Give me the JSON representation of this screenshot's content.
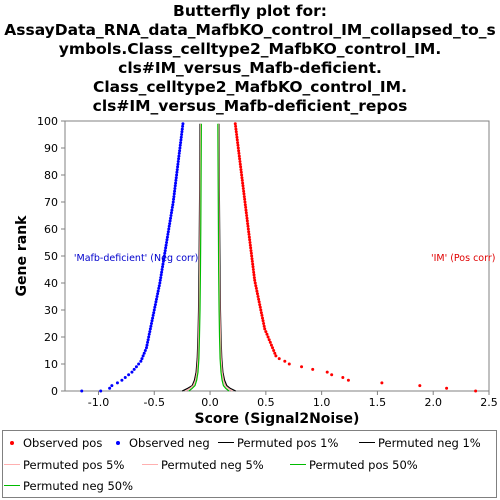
{
  "chart_data": {
    "type": "scatter",
    "title_lines": [
      "Butterfly plot for:",
      "AssayData_RNA_data_MafbKO_control_IM_collapsed_to_s",
      "ymbols.Class_celltype2_MafbKO_control_IM.",
      "cls#IM_versus_Mafb-deficient.",
      "Class_celltype2_MafbKO_control_IM.",
      "cls#IM_versus_Mafb-deficient_repos"
    ],
    "xlabel": "Score (Signal2Noise)",
    "ylabel": "Gene rank",
    "xlim": [
      -1.3,
      2.5
    ],
    "ylim": [
      0,
      100
    ],
    "x_ticks": [
      -1.0,
      -0.5,
      0.0,
      0.5,
      1.0,
      1.5,
      2.0,
      2.5
    ],
    "x_tick_labels": [
      "-1.0",
      "-0.5",
      "0.0",
      "0.5",
      "1.0",
      "1.5",
      "2.0",
      "2.5"
    ],
    "y_ticks": [
      0,
      10,
      20,
      30,
      40,
      50,
      60,
      70,
      80,
      90,
      100
    ],
    "y_tick_labels": [
      "0",
      "10",
      "20",
      "30",
      "40",
      "50",
      "60",
      "70",
      "80",
      "90",
      "100"
    ],
    "annotations": [
      {
        "text": "'Mafb-deficient' (Neg corr)",
        "x": -1.22,
        "y": 49.6,
        "color": "#0000cc"
      },
      {
        "text": "'IM' (Pos corr)",
        "x": 1.98,
        "y": 49.6,
        "color": "#e00000"
      }
    ],
    "series": [
      {
        "name": "Observed pos",
        "kind": "points",
        "color": "#ff0000",
        "points": [
          [
            2.38,
            0
          ],
          [
            2.12,
            1
          ],
          [
            1.88,
            2
          ],
          [
            1.54,
            3
          ],
          [
            1.24,
            4
          ],
          [
            1.19,
            5
          ],
          [
            1.09,
            6
          ],
          [
            1.05,
            7
          ],
          [
            0.92,
            8
          ],
          [
            0.82,
            9
          ],
          [
            0.71,
            10
          ],
          [
            0.67,
            11
          ],
          [
            0.62,
            12
          ],
          [
            0.59,
            13
          ],
          [
            0.58,
            14
          ],
          [
            0.57,
            15
          ],
          [
            0.56,
            16
          ],
          [
            0.55,
            17
          ],
          [
            0.54,
            18
          ],
          [
            0.53,
            19
          ],
          [
            0.52,
            20
          ],
          [
            0.51,
            21
          ],
          [
            0.5,
            22
          ],
          [
            0.49,
            23
          ],
          [
            0.485,
            24
          ],
          [
            0.48,
            25
          ],
          [
            0.475,
            26
          ],
          [
            0.47,
            27
          ],
          [
            0.465,
            28
          ],
          [
            0.46,
            29
          ],
          [
            0.455,
            30
          ],
          [
            0.45,
            31
          ],
          [
            0.445,
            32
          ],
          [
            0.44,
            33
          ],
          [
            0.435,
            34
          ],
          [
            0.43,
            35
          ],
          [
            0.425,
            36
          ],
          [
            0.42,
            37
          ],
          [
            0.415,
            38
          ],
          [
            0.41,
            39
          ],
          [
            0.405,
            40
          ],
          [
            0.4,
            41
          ],
          [
            0.397,
            42
          ],
          [
            0.394,
            43
          ],
          [
            0.391,
            44
          ],
          [
            0.388,
            45
          ],
          [
            0.385,
            46
          ],
          [
            0.382,
            47
          ],
          [
            0.379,
            48
          ],
          [
            0.376,
            49
          ],
          [
            0.373,
            50
          ],
          [
            0.37,
            51
          ],
          [
            0.367,
            52
          ],
          [
            0.364,
            53
          ],
          [
            0.361,
            54
          ],
          [
            0.358,
            55
          ],
          [
            0.355,
            56
          ],
          [
            0.352,
            57
          ],
          [
            0.349,
            58
          ],
          [
            0.346,
            59
          ],
          [
            0.343,
            60
          ],
          [
            0.34,
            61
          ],
          [
            0.337,
            62
          ],
          [
            0.334,
            63
          ],
          [
            0.331,
            64
          ],
          [
            0.328,
            65
          ],
          [
            0.325,
            66
          ],
          [
            0.322,
            67
          ],
          [
            0.319,
            68
          ],
          [
            0.316,
            69
          ],
          [
            0.313,
            70
          ],
          [
            0.31,
            71
          ],
          [
            0.307,
            72
          ],
          [
            0.304,
            73
          ],
          [
            0.301,
            74
          ],
          [
            0.298,
            75
          ],
          [
            0.295,
            76
          ],
          [
            0.292,
            77
          ],
          [
            0.289,
            78
          ],
          [
            0.286,
            79
          ],
          [
            0.283,
            80
          ],
          [
            0.28,
            81
          ],
          [
            0.277,
            82
          ],
          [
            0.274,
            83
          ],
          [
            0.271,
            84
          ],
          [
            0.268,
            85
          ],
          [
            0.265,
            86
          ],
          [
            0.262,
            87
          ],
          [
            0.259,
            88
          ],
          [
            0.256,
            89
          ],
          [
            0.253,
            90
          ],
          [
            0.25,
            91
          ],
          [
            0.247,
            92
          ],
          [
            0.244,
            93
          ],
          [
            0.241,
            94
          ],
          [
            0.238,
            95
          ],
          [
            0.235,
            96
          ],
          [
            0.232,
            97
          ],
          [
            0.229,
            98
          ],
          [
            0.226,
            99
          ]
        ]
      },
      {
        "name": "Observed neg",
        "kind": "points",
        "color": "#0000ff",
        "points": [
          [
            -1.15,
            0
          ],
          [
            -0.98,
            0
          ],
          [
            -0.9,
            1
          ],
          [
            -0.88,
            2
          ],
          [
            -0.83,
            3
          ],
          [
            -0.79,
            4
          ],
          [
            -0.76,
            5
          ],
          [
            -0.73,
            6
          ],
          [
            -0.7,
            7
          ],
          [
            -0.68,
            8
          ],
          [
            -0.66,
            9
          ],
          [
            -0.64,
            10
          ],
          [
            -0.62,
            11
          ],
          [
            -0.61,
            12
          ],
          [
            -0.6,
            13
          ],
          [
            -0.59,
            14
          ],
          [
            -0.58,
            15
          ],
          [
            -0.57,
            16
          ],
          [
            -0.565,
            17
          ],
          [
            -0.56,
            18
          ],
          [
            -0.555,
            19
          ],
          [
            -0.55,
            20
          ],
          [
            -0.545,
            21
          ],
          [
            -0.54,
            22
          ],
          [
            -0.535,
            23
          ],
          [
            -0.53,
            24
          ],
          [
            -0.525,
            25
          ],
          [
            -0.52,
            26
          ],
          [
            -0.515,
            27
          ],
          [
            -0.51,
            28
          ],
          [
            -0.505,
            29
          ],
          [
            -0.5,
            30
          ],
          [
            -0.495,
            31
          ],
          [
            -0.49,
            32
          ],
          [
            -0.485,
            33
          ],
          [
            -0.48,
            34
          ],
          [
            -0.475,
            35
          ],
          [
            -0.47,
            36
          ],
          [
            -0.465,
            37
          ],
          [
            -0.46,
            38
          ],
          [
            -0.455,
            39
          ],
          [
            -0.45,
            40
          ],
          [
            -0.446,
            41
          ],
          [
            -0.442,
            42
          ],
          [
            -0.438,
            43
          ],
          [
            -0.434,
            44
          ],
          [
            -0.43,
            45
          ],
          [
            -0.426,
            46
          ],
          [
            -0.422,
            47
          ],
          [
            -0.418,
            48
          ],
          [
            -0.414,
            49
          ],
          [
            -0.41,
            50
          ],
          [
            -0.406,
            51
          ],
          [
            -0.402,
            52
          ],
          [
            -0.398,
            53
          ],
          [
            -0.394,
            54
          ],
          [
            -0.39,
            55
          ],
          [
            -0.386,
            56
          ],
          [
            -0.382,
            57
          ],
          [
            -0.378,
            58
          ],
          [
            -0.374,
            59
          ],
          [
            -0.37,
            60
          ],
          [
            -0.366,
            61
          ],
          [
            -0.362,
            62
          ],
          [
            -0.358,
            63
          ],
          [
            -0.354,
            64
          ],
          [
            -0.35,
            65
          ],
          [
            -0.346,
            66
          ],
          [
            -0.342,
            67
          ],
          [
            -0.338,
            68
          ],
          [
            -0.334,
            69
          ],
          [
            -0.33,
            70
          ],
          [
            -0.327,
            71
          ],
          [
            -0.324,
            72
          ],
          [
            -0.321,
            73
          ],
          [
            -0.318,
            74
          ],
          [
            -0.315,
            75
          ],
          [
            -0.312,
            76
          ],
          [
            -0.309,
            77
          ],
          [
            -0.306,
            78
          ],
          [
            -0.303,
            79
          ],
          [
            -0.3,
            80
          ],
          [
            -0.297,
            81
          ],
          [
            -0.294,
            82
          ],
          [
            -0.291,
            83
          ],
          [
            -0.288,
            84
          ],
          [
            -0.285,
            85
          ],
          [
            -0.282,
            86
          ],
          [
            -0.279,
            87
          ],
          [
            -0.276,
            88
          ],
          [
            -0.273,
            89
          ],
          [
            -0.27,
            90
          ],
          [
            -0.267,
            91
          ],
          [
            -0.264,
            92
          ],
          [
            -0.261,
            93
          ],
          [
            -0.258,
            94
          ],
          [
            -0.255,
            95
          ],
          [
            -0.252,
            96
          ],
          [
            -0.249,
            97
          ],
          [
            -0.246,
            98
          ],
          [
            -0.243,
            99
          ]
        ]
      },
      {
        "name": "Permuted pos 1%",
        "kind": "line",
        "color": "#000000",
        "points": [
          [
            0.23,
            0
          ],
          [
            0.18,
            1
          ],
          [
            0.15,
            2
          ],
          [
            0.13,
            4
          ],
          [
            0.115,
            7
          ],
          [
            0.105,
            12
          ],
          [
            0.098,
            20
          ],
          [
            0.093,
            30
          ],
          [
            0.089,
            45
          ],
          [
            0.086,
            60
          ],
          [
            0.083,
            75
          ],
          [
            0.081,
            90
          ],
          [
            0.08,
            99
          ]
        ]
      },
      {
        "name": "Permuted neg 1%",
        "kind": "line",
        "color": "#000000",
        "points": [
          [
            -0.25,
            0
          ],
          [
            -0.2,
            1
          ],
          [
            -0.16,
            2
          ],
          [
            -0.14,
            4
          ],
          [
            -0.125,
            7
          ],
          [
            -0.115,
            12
          ],
          [
            -0.108,
            20
          ],
          [
            -0.103,
            30
          ],
          [
            -0.099,
            45
          ],
          [
            -0.096,
            60
          ],
          [
            -0.093,
            75
          ],
          [
            -0.091,
            90
          ],
          [
            -0.09,
            99
          ]
        ]
      },
      {
        "name": "Permuted pos 5%",
        "kind": "line",
        "color": "#ffb0b0",
        "points": [
          [
            0.2,
            0
          ],
          [
            0.16,
            1
          ],
          [
            0.135,
            2
          ],
          [
            0.12,
            4
          ],
          [
            0.108,
            7
          ],
          [
            0.099,
            12
          ],
          [
            0.093,
            20
          ],
          [
            0.088,
            30
          ],
          [
            0.084,
            45
          ],
          [
            0.081,
            60
          ],
          [
            0.079,
            75
          ],
          [
            0.077,
            90
          ],
          [
            0.076,
            99
          ]
        ]
      },
      {
        "name": "Permuted neg 5%",
        "kind": "line",
        "color": "#ffb0b0",
        "points": [
          [
            -0.22,
            0
          ],
          [
            -0.18,
            1
          ],
          [
            -0.15,
            2
          ],
          [
            -0.13,
            4
          ],
          [
            -0.117,
            7
          ],
          [
            -0.108,
            12
          ],
          [
            -0.102,
            20
          ],
          [
            -0.097,
            30
          ],
          [
            -0.093,
            45
          ],
          [
            -0.09,
            60
          ],
          [
            -0.088,
            75
          ],
          [
            -0.086,
            90
          ],
          [
            -0.085,
            99
          ]
        ]
      },
      {
        "name": "Permuted pos 50%",
        "kind": "line",
        "color": "#00bb00",
        "points": [
          [
            0.17,
            0
          ],
          [
            0.14,
            1
          ],
          [
            0.12,
            2
          ],
          [
            0.108,
            4
          ],
          [
            0.098,
            7
          ],
          [
            0.09,
            12
          ],
          [
            0.085,
            20
          ],
          [
            0.081,
            30
          ],
          [
            0.077,
            45
          ],
          [
            0.075,
            60
          ],
          [
            0.073,
            75
          ],
          [
            0.071,
            90
          ],
          [
            0.07,
            99
          ]
        ]
      },
      {
        "name": "Permuted neg 50%",
        "kind": "line",
        "color": "#00bb00",
        "points": [
          [
            -0.19,
            0
          ],
          [
            -0.16,
            1
          ],
          [
            -0.135,
            2
          ],
          [
            -0.12,
            4
          ],
          [
            -0.108,
            7
          ],
          [
            -0.1,
            12
          ],
          [
            -0.095,
            20
          ],
          [
            -0.09,
            30
          ],
          [
            -0.086,
            45
          ],
          [
            -0.083,
            60
          ],
          [
            -0.081,
            75
          ],
          [
            -0.079,
            90
          ],
          [
            -0.078,
            99
          ]
        ]
      }
    ],
    "legend": [
      {
        "label": "Observed pos",
        "marker": "dot",
        "color": "#ff0000"
      },
      {
        "label": "Observed neg",
        "marker": "dot",
        "color": "#0000ff"
      },
      {
        "label": "Permuted pos 1%",
        "marker": "line",
        "color": "#000000"
      },
      {
        "label": "Permuted neg 1%",
        "marker": "line",
        "color": "#000000"
      },
      {
        "label": "Permuted pos 5%",
        "marker": "line",
        "color": "#ffb0b0"
      },
      {
        "label": "Permuted neg 5%",
        "marker": "line",
        "color": "#ffb0b0"
      },
      {
        "label": "Permuted pos 50%",
        "marker": "line",
        "color": "#00bb00"
      },
      {
        "label": "Permuted neg 50%",
        "marker": "line",
        "color": "#00bb00"
      }
    ],
    "grid": false,
    "legend_position": "bottom"
  }
}
